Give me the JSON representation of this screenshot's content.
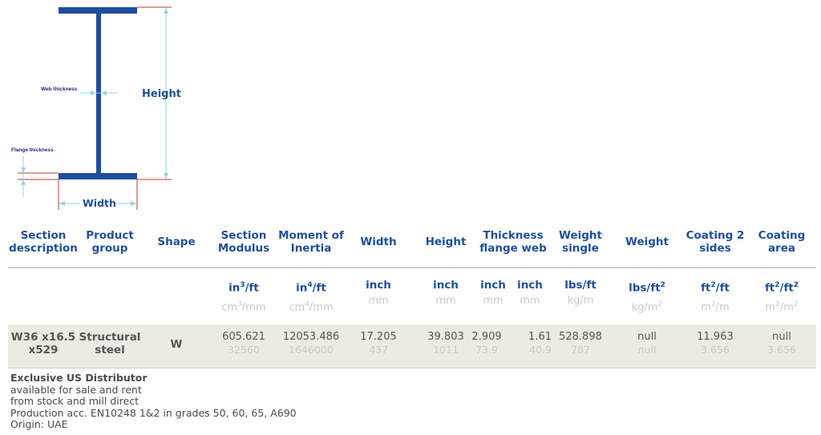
{
  "diagram": {
    "web_thickness_label": "Web thickness",
    "height_label": "Height",
    "flange_thickness_label": "Flange thickness",
    "width_label": "Width",
    "beam_color": "#1f4e9c",
    "dim_color": "#8fd6e6",
    "edge_color": "#c0392b"
  },
  "headers": {
    "section_description": "Section description",
    "product_group": "Product group",
    "shape": "Shape",
    "section_modulus": "Section Modulus",
    "moment_of_inertia": "Moment of Inertia",
    "width": "Width",
    "height": "Height",
    "thickness": "Thickness flange web",
    "weight_single": "Weight single",
    "weight": "Weight",
    "coating_2_sides": "Coating 2 sides",
    "coating_area": "Coating area"
  },
  "units": {
    "section_modulus": {
      "imperial_base": "in",
      "imperial_exp": "3",
      "imperial_suffix": "/ft",
      "metric_base": "cm",
      "metric_exp": "3",
      "metric_suffix": "/mm"
    },
    "moment_of_inertia": {
      "imperial_base": "in",
      "imperial_exp": "4",
      "imperial_suffix": "/ft",
      "metric_base": "cm",
      "metric_exp": "4",
      "metric_suffix": "/mm"
    },
    "width": {
      "imperial": "inch",
      "metric": "mm"
    },
    "height": {
      "imperial": "inch",
      "metric": "mm"
    },
    "flange": {
      "imperial": "inch",
      "metric": "mm"
    },
    "web": {
      "imperial": "inch",
      "metric": "mm"
    },
    "weight_single": {
      "imperial": "lbs/ft",
      "metric": "kg/m"
    },
    "weight": {
      "imperial_base": "lbs/ft",
      "imperial_exp": "2",
      "metric_base": "kg/m",
      "metric_exp": "2"
    },
    "coating_2_sides": {
      "imperial_base": "ft",
      "imperial_exp": "2",
      "imperial_suffix": "/ft",
      "metric_base": "m",
      "metric_exp": "2",
      "metric_suffix": "/m"
    },
    "coating_area": {
      "imperial_base": "ft",
      "imperial_exp": "2",
      "imperial_mid": "/ft",
      "imperial_exp2": "2",
      "metric_base": "m",
      "metric_exp": "2",
      "metric_mid": "/m",
      "metric_exp2": "2"
    }
  },
  "row": {
    "section_description": "W36 x16.5 x529",
    "product_group": "Structural steel",
    "shape": "W",
    "section_modulus": {
      "imperial": "605.621",
      "metric": "32560"
    },
    "moment_of_inertia": {
      "imperial": "12053.486",
      "metric": "1646000"
    },
    "width": {
      "imperial": "17.205",
      "metric": "437"
    },
    "height": {
      "imperial": "39.803",
      "metric": "1011"
    },
    "flange": {
      "imperial": "2.909",
      "metric": "73.9"
    },
    "web": {
      "imperial": "1.61",
      "metric": "40.9"
    },
    "weight_single": {
      "imperial": "528.898",
      "metric": "787"
    },
    "weight": {
      "imperial": "null",
      "metric": "null"
    },
    "coating_2_sides": {
      "imperial": "11.963",
      "metric": "3.656"
    },
    "coating_area": {
      "imperial": "null",
      "metric": "3.656"
    }
  },
  "notes": {
    "title": "Exclusive US Distributor",
    "lines": [
      "available for sale and rent",
      "from stock and mill direct",
      "Production acc. EN10248 1&2 in grades 50, 60, 65, A690",
      "Origin: UAE"
    ]
  }
}
